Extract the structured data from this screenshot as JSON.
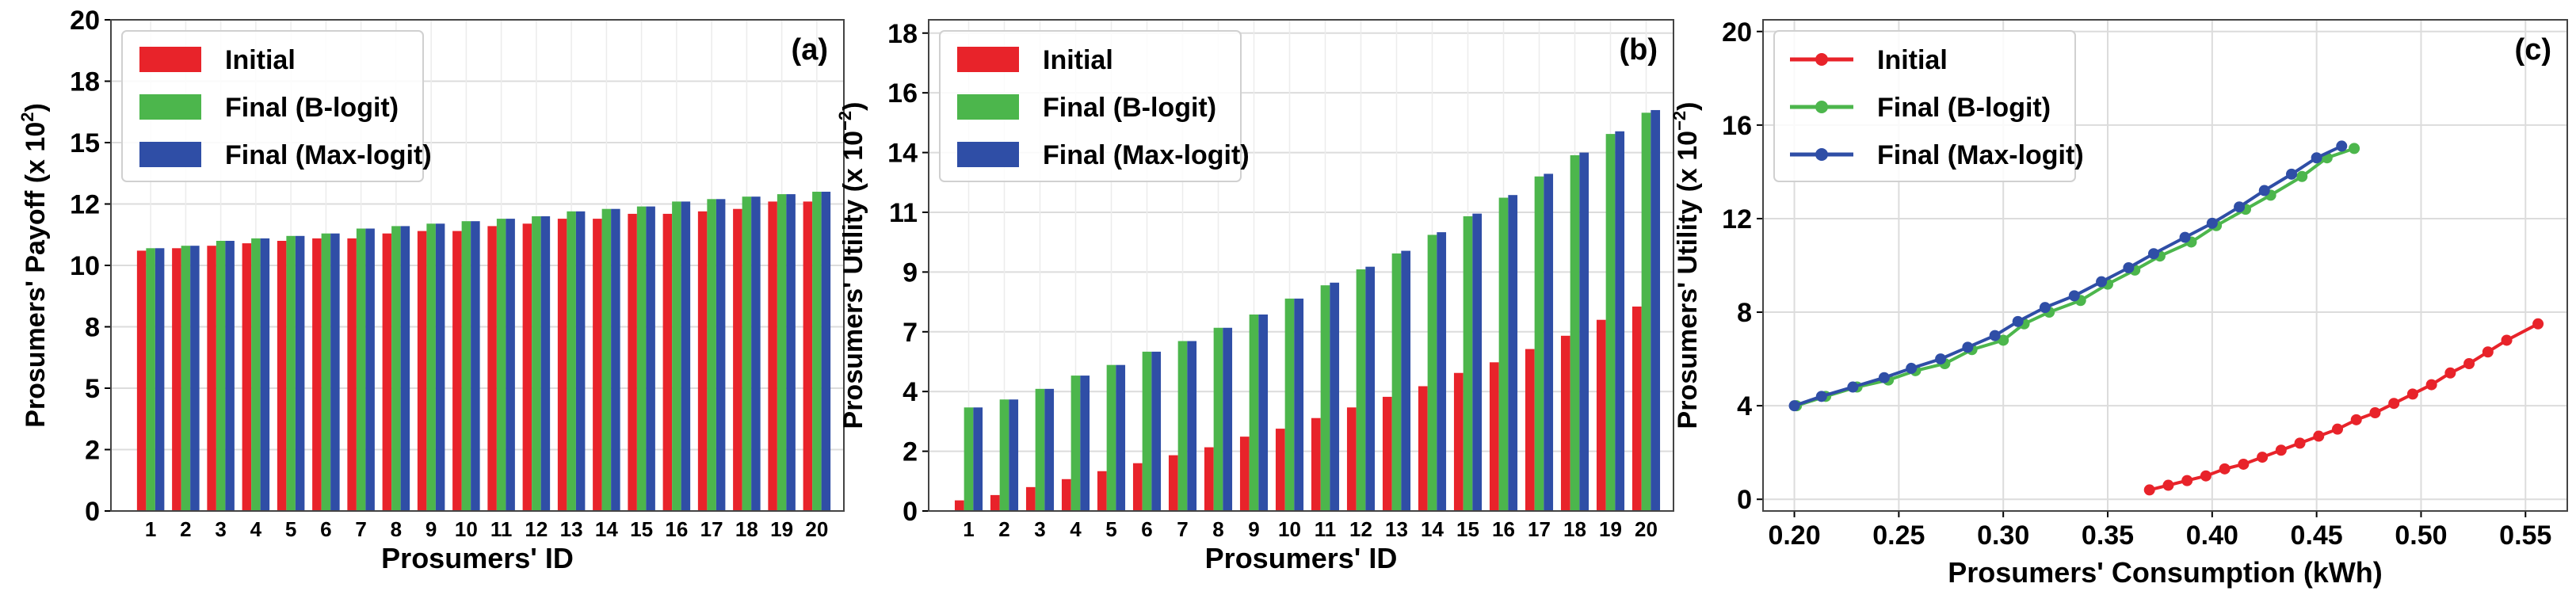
{
  "chart_data": [
    {
      "type": "bar",
      "panel_label": "(a)",
      "xlabel": "Prosumers' ID",
      "ylabel": "Prosumers' Payoff (x 10",
      "ylabel_exp": "2",
      "ylabel_close": ")",
      "ylim": [
        0,
        20
      ],
      "yticks": [
        0,
        2.5,
        5,
        7.5,
        10,
        12.5,
        15,
        17.5,
        20
      ],
      "ytick_labels": [
        "0",
        "2",
        "5",
        "8",
        "10",
        "12",
        "15",
        "18",
        "20"
      ],
      "categories": [
        "1",
        "2",
        "3",
        "4",
        "5",
        "6",
        "7",
        "8",
        "9",
        "10",
        "11",
        "12",
        "13",
        "14",
        "15",
        "16",
        "17",
        "18",
        "19",
        "20"
      ],
      "grid": true,
      "legend_position": "top-left",
      "series": [
        {
          "name": "Initial",
          "color": "#e8232a",
          "values": [
            10.6,
            10.7,
            10.8,
            10.9,
            11.0,
            11.1,
            11.1,
            11.3,
            11.4,
            11.4,
            11.6,
            11.7,
            11.9,
            11.9,
            12.1,
            12.1,
            12.2,
            12.3,
            12.6,
            12.6
          ]
        },
        {
          "name": "Final (B-logit)",
          "color": "#4cb64c",
          "values": [
            10.7,
            10.8,
            11.0,
            11.1,
            11.2,
            11.3,
            11.5,
            11.6,
            11.7,
            11.8,
            11.9,
            12.0,
            12.2,
            12.3,
            12.4,
            12.6,
            12.7,
            12.8,
            12.9,
            13.0
          ]
        },
        {
          "name": "Final (Max-logit)",
          "color": "#2f4ea6",
          "values": [
            10.7,
            10.8,
            11.0,
            11.1,
            11.2,
            11.3,
            11.5,
            11.6,
            11.7,
            11.8,
            11.9,
            12.0,
            12.2,
            12.3,
            12.4,
            12.6,
            12.7,
            12.8,
            12.9,
            13.0
          ]
        }
      ]
    },
    {
      "type": "bar",
      "panel_label": "(b)",
      "xlabel": "Prosumers' ID",
      "ylabel": "Prosumers' Utility (x 10",
      "ylabel_exp": "−2",
      "ylabel_close": ")",
      "ylim": [
        0,
        18.5
      ],
      "yticks": [
        0,
        2.25,
        4.5,
        6.75,
        9,
        11.25,
        13.5,
        15.75,
        18
      ],
      "ytick_labels": [
        "0",
        "2",
        "4",
        "7",
        "9",
        "11",
        "14",
        "16",
        "18"
      ],
      "categories": [
        "1",
        "2",
        "3",
        "4",
        "5",
        "6",
        "7",
        "8",
        "9",
        "10",
        "11",
        "12",
        "13",
        "14",
        "15",
        "16",
        "17",
        "18",
        "19",
        "20"
      ],
      "grid": true,
      "legend_position": "top-left",
      "series": [
        {
          "name": "Initial",
          "color": "#e8232a",
          "values": [
            0.4,
            0.6,
            0.9,
            1.2,
            1.5,
            1.8,
            2.1,
            2.4,
            2.8,
            3.1,
            3.5,
            3.9,
            4.3,
            4.7,
            5.2,
            5.6,
            6.1,
            6.6,
            7.2,
            7.7
          ]
        },
        {
          "name": "Final (B-logit)",
          "color": "#4cb64c",
          "values": [
            3.9,
            4.2,
            4.6,
            5.1,
            5.5,
            6.0,
            6.4,
            6.9,
            7.4,
            8.0,
            8.5,
            9.1,
            9.7,
            10.4,
            11.1,
            11.8,
            12.6,
            13.4,
            14.2,
            15.0
          ]
        },
        {
          "name": "Final (Max-logit)",
          "color": "#2f4ea6",
          "values": [
            3.9,
            4.2,
            4.6,
            5.1,
            5.5,
            6.0,
            6.4,
            6.9,
            7.4,
            8.0,
            8.6,
            9.2,
            9.8,
            10.5,
            11.2,
            11.9,
            12.7,
            13.5,
            14.3,
            15.1
          ]
        }
      ]
    },
    {
      "type": "line",
      "panel_label": "(c)",
      "xlabel": "Prosumers' Consumption (kWh)",
      "ylabel": "Prosumers' Utility (x 10",
      "ylabel_exp": "−2",
      "ylabel_close": ")",
      "xlim": [
        0.185,
        0.57
      ],
      "ylim": [
        -0.5,
        20.5
      ],
      "xticks": [
        0.2,
        0.25,
        0.3,
        0.35,
        0.4,
        0.45,
        0.5,
        0.55
      ],
      "xtick_labels": [
        "0.20",
        "0.25",
        "0.30",
        "0.35",
        "0.40",
        "0.45",
        "0.50",
        "0.55"
      ],
      "yticks": [
        0,
        4,
        8,
        12,
        16,
        20
      ],
      "ytick_labels": [
        "0",
        "4",
        "8",
        "12",
        "16",
        "20"
      ],
      "grid": true,
      "legend_position": "top-left",
      "series": [
        {
          "name": "Initial",
          "color": "#e8232a",
          "x": [
            0.37,
            0.379,
            0.388,
            0.397,
            0.406,
            0.415,
            0.424,
            0.433,
            0.442,
            0.451,
            0.46,
            0.469,
            0.478,
            0.487,
            0.496,
            0.505,
            0.514,
            0.523,
            0.532,
            0.541,
            0.556
          ],
          "y": [
            0.4,
            0.6,
            0.8,
            1.0,
            1.3,
            1.5,
            1.8,
            2.1,
            2.4,
            2.7,
            3.0,
            3.4,
            3.7,
            4.1,
            4.5,
            4.9,
            5.4,
            5.8,
            6.3,
            6.8,
            7.5
          ]
        },
        {
          "name": "Final (B-logit)",
          "color": "#4cb64c",
          "x": [
            0.201,
            0.215,
            0.23,
            0.245,
            0.258,
            0.272,
            0.285,
            0.3,
            0.31,
            0.322,
            0.337,
            0.35,
            0.363,
            0.375,
            0.39,
            0.402,
            0.416,
            0.428,
            0.443,
            0.455,
            0.468
          ],
          "y": [
            4.0,
            4.4,
            4.8,
            5.1,
            5.5,
            5.8,
            6.4,
            6.8,
            7.5,
            8.0,
            8.5,
            9.2,
            9.8,
            10.4,
            11.0,
            11.7,
            12.4,
            13.0,
            13.8,
            14.6,
            15.0
          ]
        },
        {
          "name": "Final (Max-logit)",
          "color": "#2f4ea6",
          "x": [
            0.2,
            0.213,
            0.228,
            0.243,
            0.256,
            0.27,
            0.283,
            0.296,
            0.307,
            0.32,
            0.334,
            0.347,
            0.36,
            0.372,
            0.387,
            0.4,
            0.413,
            0.425,
            0.438,
            0.45,
            0.462
          ],
          "y": [
            4.0,
            4.4,
            4.8,
            5.2,
            5.6,
            6.0,
            6.5,
            7.0,
            7.6,
            8.2,
            8.7,
            9.3,
            9.9,
            10.5,
            11.2,
            11.8,
            12.5,
            13.2,
            13.9,
            14.6,
            15.1
          ]
        }
      ]
    }
  ]
}
